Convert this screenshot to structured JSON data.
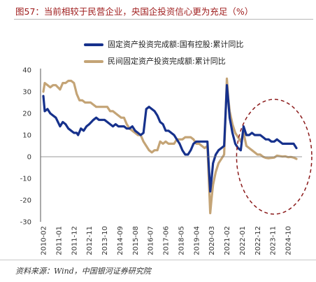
{
  "figure": {
    "title": "图57：当前相较于民营企业，央国企投资信心更为充足（%）",
    "source": "资料来源：Wind，中国银河证券研究院"
  },
  "chart_data": {
    "type": "line",
    "title": "",
    "xlabel": "",
    "ylabel": "",
    "ylim": [
      -30,
      40
    ],
    "yticks": [
      -30,
      -20,
      -10,
      0,
      10,
      20,
      30,
      40
    ],
    "grid": false,
    "legend_position": "top",
    "x_range": [
      "2010-02",
      "2025-04"
    ],
    "x_tick_labels": [
      "2010-02",
      "2011-01",
      "2011-12",
      "2012-11",
      "2013-10",
      "2014-09",
      "2015-08",
      "2016-07",
      "2017-06",
      "2018-05",
      "2019-04",
      "2020-03",
      "2021-02",
      "2022-01",
      "2022-12",
      "2023-11",
      "2024-10"
    ],
    "annotation": "dashed-ellipse-highlight-2022-2025",
    "series": [
      {
        "name": "固定资产投资完成额:国有控股:累计同比",
        "color": "#16318c",
        "points": [
          [
            "2010-02",
            28
          ],
          [
            "2010-03",
            21
          ],
          [
            "2010-05",
            22
          ],
          [
            "2010-07",
            20
          ],
          [
            "2010-09",
            19
          ],
          [
            "2010-11",
            18
          ],
          [
            "2011-02",
            14
          ],
          [
            "2011-04",
            16
          ],
          [
            "2011-06",
            15
          ],
          [
            "2011-08",
            13
          ],
          [
            "2011-10",
            12
          ],
          [
            "2011-12",
            11
          ],
          [
            "2012-02",
            11
          ],
          [
            "2012-03",
            10
          ],
          [
            "2012-05",
            13
          ],
          [
            "2012-07",
            12
          ],
          [
            "2012-09",
            14
          ],
          [
            "2012-11",
            15
          ],
          [
            "2013-02",
            17
          ],
          [
            "2013-04",
            18
          ],
          [
            "2013-06",
            17
          ],
          [
            "2013-08",
            17
          ],
          [
            "2013-10",
            17
          ],
          [
            "2013-12",
            16
          ],
          [
            "2014-02",
            15
          ],
          [
            "2014-04",
            14
          ],
          [
            "2014-06",
            15
          ],
          [
            "2014-08",
            14
          ],
          [
            "2014-10",
            14
          ],
          [
            "2014-12",
            14
          ],
          [
            "2015-02",
            13
          ],
          [
            "2015-04",
            13
          ],
          [
            "2015-06",
            14
          ],
          [
            "2015-08",
            12
          ],
          [
            "2015-10",
            11
          ],
          [
            "2015-12",
            10
          ],
          [
            "2016-02",
            11
          ],
          [
            "2016-04",
            22
          ],
          [
            "2016-06",
            23
          ],
          [
            "2016-08",
            22
          ],
          [
            "2016-10",
            21
          ],
          [
            "2016-12",
            19
          ],
          [
            "2017-02",
            16
          ],
          [
            "2017-04",
            15
          ],
          [
            "2017-06",
            12
          ],
          [
            "2017-08",
            12
          ],
          [
            "2017-10",
            11
          ],
          [
            "2017-12",
            10
          ],
          [
            "2018-02",
            8
          ],
          [
            "2018-04",
            6
          ],
          [
            "2018-06",
            3
          ],
          [
            "2018-08",
            1
          ],
          [
            "2018-10",
            1
          ],
          [
            "2018-12",
            3
          ],
          [
            "2019-02",
            6
          ],
          [
            "2019-04",
            7
          ],
          [
            "2019-06",
            7
          ],
          [
            "2019-08",
            7
          ],
          [
            "2019-10",
            7
          ],
          [
            "2019-12",
            7
          ],
          [
            "2020-02",
            -16
          ],
          [
            "2020-03",
            -10
          ],
          [
            "2020-04",
            -3
          ],
          [
            "2020-06",
            1
          ],
          [
            "2020-08",
            3
          ],
          [
            "2020-10",
            4
          ],
          [
            "2020-12",
            5
          ],
          [
            "2021-02",
            33
          ],
          [
            "2021-03",
            26
          ],
          [
            "2021-04",
            18
          ],
          [
            "2021-06",
            11
          ],
          [
            "2021-08",
            6
          ],
          [
            "2021-10",
            4
          ],
          [
            "2021-12",
            3
          ],
          [
            "2022-02",
            14
          ],
          [
            "2022-04",
            10
          ],
          [
            "2022-06",
            10
          ],
          [
            "2022-08",
            11
          ],
          [
            "2022-10",
            10
          ],
          [
            "2022-12",
            10
          ],
          [
            "2023-02",
            10
          ],
          [
            "2023-04",
            9
          ],
          [
            "2023-06",
            8
          ],
          [
            "2023-08",
            8
          ],
          [
            "2023-10",
            7
          ],
          [
            "2023-12",
            7
          ],
          [
            "2024-02",
            8
          ],
          [
            "2024-04",
            7
          ],
          [
            "2024-06",
            6
          ],
          [
            "2024-08",
            6
          ],
          [
            "2024-10",
            6
          ],
          [
            "2024-12",
            6
          ],
          [
            "2025-02",
            6
          ],
          [
            "2025-04",
            4
          ]
        ]
      },
      {
        "name": "民间固定资产投资完成额:累计同比",
        "color": "#c4a476",
        "points": [
          [
            "2010-02",
            30
          ],
          [
            "2010-03",
            34
          ],
          [
            "2010-05",
            33
          ],
          [
            "2010-07",
            32
          ],
          [
            "2010-09",
            33
          ],
          [
            "2010-11",
            33
          ],
          [
            "2011-02",
            31
          ],
          [
            "2011-04",
            34
          ],
          [
            "2011-06",
            34
          ],
          [
            "2011-08",
            35
          ],
          [
            "2011-10",
            35
          ],
          [
            "2011-12",
            34
          ],
          [
            "2012-02",
            29
          ],
          [
            "2012-04",
            26
          ],
          [
            "2012-06",
            26
          ],
          [
            "2012-08",
            25
          ],
          [
            "2012-10",
            25
          ],
          [
            "2012-12",
            25
          ],
          [
            "2013-02",
            24
          ],
          [
            "2013-04",
            23
          ],
          [
            "2013-06",
            23
          ],
          [
            "2013-08",
            23
          ],
          [
            "2013-10",
            23
          ],
          [
            "2013-12",
            23
          ],
          [
            "2014-02",
            21
          ],
          [
            "2014-04",
            21
          ],
          [
            "2014-06",
            20
          ],
          [
            "2014-08",
            19
          ],
          [
            "2014-10",
            18
          ],
          [
            "2014-12",
            18
          ],
          [
            "2015-02",
            15
          ],
          [
            "2015-04",
            13
          ],
          [
            "2015-06",
            12
          ],
          [
            "2015-08",
            11
          ],
          [
            "2015-10",
            10
          ],
          [
            "2015-12",
            10
          ],
          [
            "2016-02",
            7
          ],
          [
            "2016-04",
            5
          ],
          [
            "2016-06",
            3
          ],
          [
            "2016-08",
            2
          ],
          [
            "2016-10",
            3
          ],
          [
            "2016-12",
            3
          ],
          [
            "2017-02",
            7
          ],
          [
            "2017-04",
            6
          ],
          [
            "2017-06",
            7
          ],
          [
            "2017-08",
            6
          ],
          [
            "2017-10",
            6
          ],
          [
            "2017-12",
            6
          ],
          [
            "2018-02",
            8
          ],
          [
            "2018-04",
            8
          ],
          [
            "2018-06",
            8
          ],
          [
            "2018-08",
            9
          ],
          [
            "2018-10",
            9
          ],
          [
            "2018-12",
            9
          ],
          [
            "2019-02",
            8
          ],
          [
            "2019-04",
            6
          ],
          [
            "2019-06",
            6
          ],
          [
            "2019-08",
            5
          ],
          [
            "2019-10",
            4
          ],
          [
            "2019-12",
            5
          ],
          [
            "2020-02",
            -26
          ],
          [
            "2020-03",
            -19
          ],
          [
            "2020-04",
            -13
          ],
          [
            "2020-06",
            -7
          ],
          [
            "2020-08",
            -3
          ],
          [
            "2020-10",
            -1
          ],
          [
            "2020-12",
            1
          ],
          [
            "2021-02",
            36
          ],
          [
            "2021-03",
            27
          ],
          [
            "2021-04",
            21
          ],
          [
            "2021-06",
            15
          ],
          [
            "2021-08",
            11
          ],
          [
            "2021-10",
            9
          ],
          [
            "2021-12",
            7
          ],
          [
            "2022-02",
            11
          ],
          [
            "2022-04",
            5
          ],
          [
            "2022-06",
            4
          ],
          [
            "2022-08",
            3
          ],
          [
            "2022-10",
            2
          ],
          [
            "2022-12",
            1
          ],
          [
            "2023-02",
            1
          ],
          [
            "2023-04",
            0
          ],
          [
            "2023-06",
            -0.5
          ],
          [
            "2023-08",
            -0.7
          ],
          [
            "2023-10",
            -0.5
          ],
          [
            "2023-12",
            -0.4
          ],
          [
            "2024-02",
            0.5
          ],
          [
            "2024-04",
            0.3
          ],
          [
            "2024-06",
            0.1
          ],
          [
            "2024-08",
            0.2
          ],
          [
            "2024-10",
            -0.2
          ],
          [
            "2024-12",
            -0.1
          ],
          [
            "2025-02",
            -0.4
          ],
          [
            "2025-04",
            -1
          ]
        ]
      }
    ]
  }
}
